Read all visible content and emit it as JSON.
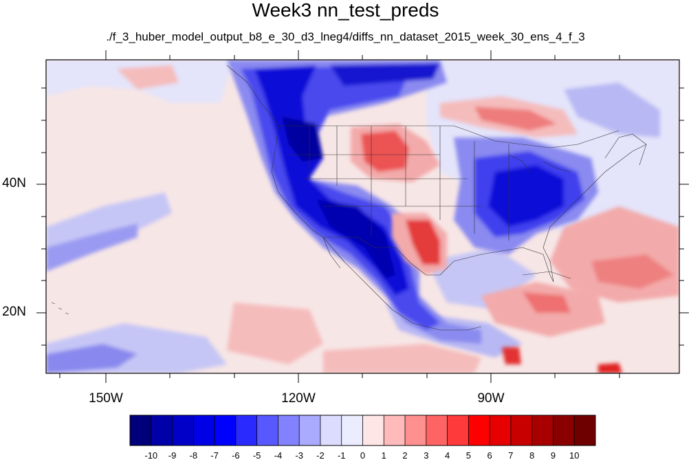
{
  "title": "Week3 nn_test_preds",
  "subtitle": "./f_3_huber_model_output_b8_e_30_d3_lneg4/diffs_nn_dataset_2015_week_30_ens_4_f_3",
  "lon_labels": [
    "150W",
    "120W",
    "90W"
  ],
  "lat_labels": [
    "40N",
    "20N"
  ],
  "colorbar": {
    "labels": [
      "-10",
      "-9",
      "-8",
      "-7",
      "-6",
      "-5",
      "-4",
      "-3",
      "-2",
      "-1",
      "0",
      "1",
      "2",
      "3",
      "4",
      "5",
      "6",
      "7",
      "8",
      "9",
      "10"
    ],
    "colors": [
      "#00007a",
      "#0000a8",
      "#0000c8",
      "#0000e6",
      "#0000ff",
      "#2a2aff",
      "#5858ff",
      "#8282ff",
      "#aaaaff",
      "#dcdcff",
      "#ececff",
      "#ffe6e6",
      "#ffbaba",
      "#ff9090",
      "#ff6464",
      "#ff3a3a",
      "#ff0000",
      "#e60000",
      "#c80000",
      "#a80000",
      "#8a0000",
      "#6e0000"
    ]
  },
  "field_colors": {
    "background": "#f7e6e6",
    "ocean_light": "#e8e8fb",
    "blue_light": "#b4b4f4",
    "blue_mid": "#6c6cf0",
    "blue_dark": "#1a1ad8",
    "blue_deep": "#0000b8",
    "red_light": "#f5bcbc",
    "red_mid": "#f08080",
    "red_dark": "#e43a3a"
  }
}
